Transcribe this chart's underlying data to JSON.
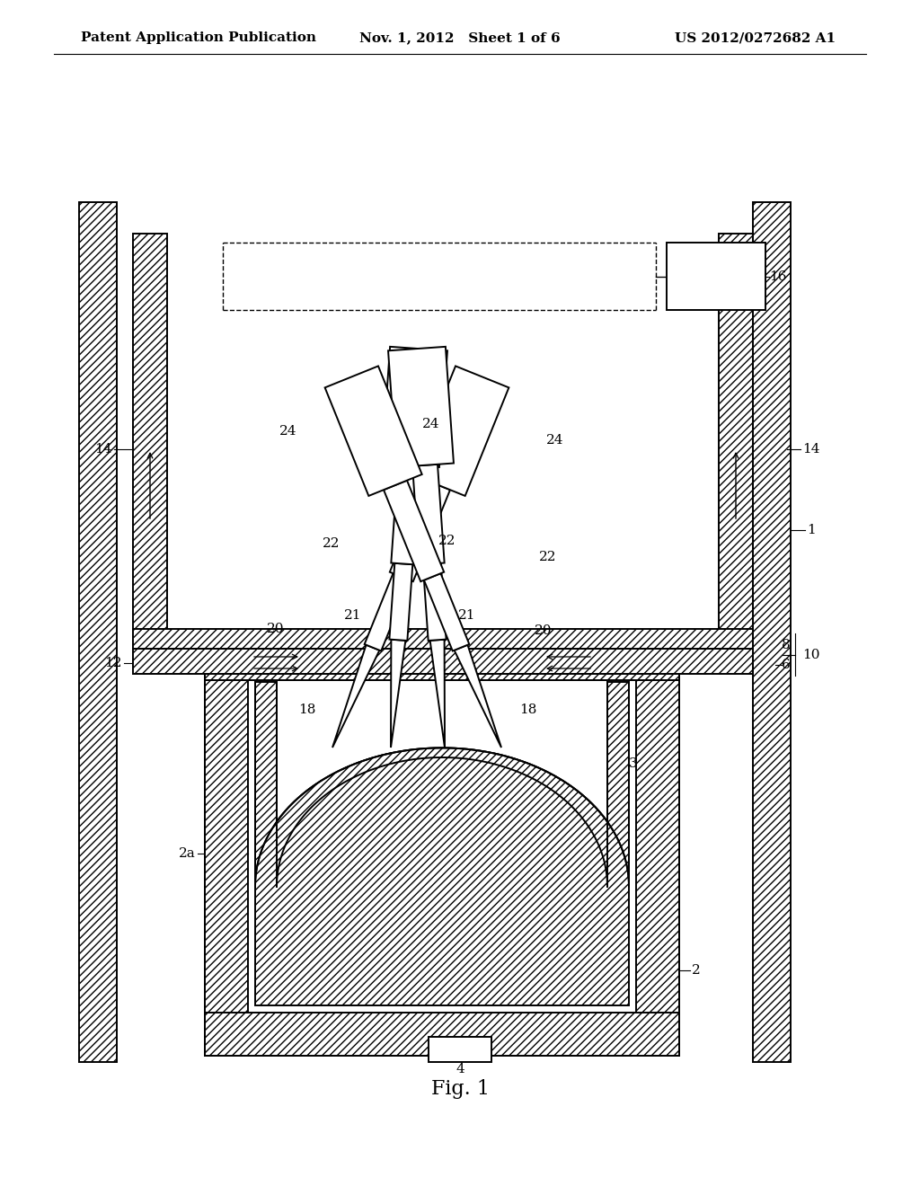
{
  "bg_color": "#ffffff",
  "lc": "#000000",
  "header_left": "Patent Application Publication",
  "header_mid": "Nov. 1, 2012   Sheet 1 of 6",
  "header_right": "US 2012/0272682 A1",
  "caption": "Fig. 1",
  "figsize": [
    10.24,
    13.2
  ],
  "dpi": 100
}
